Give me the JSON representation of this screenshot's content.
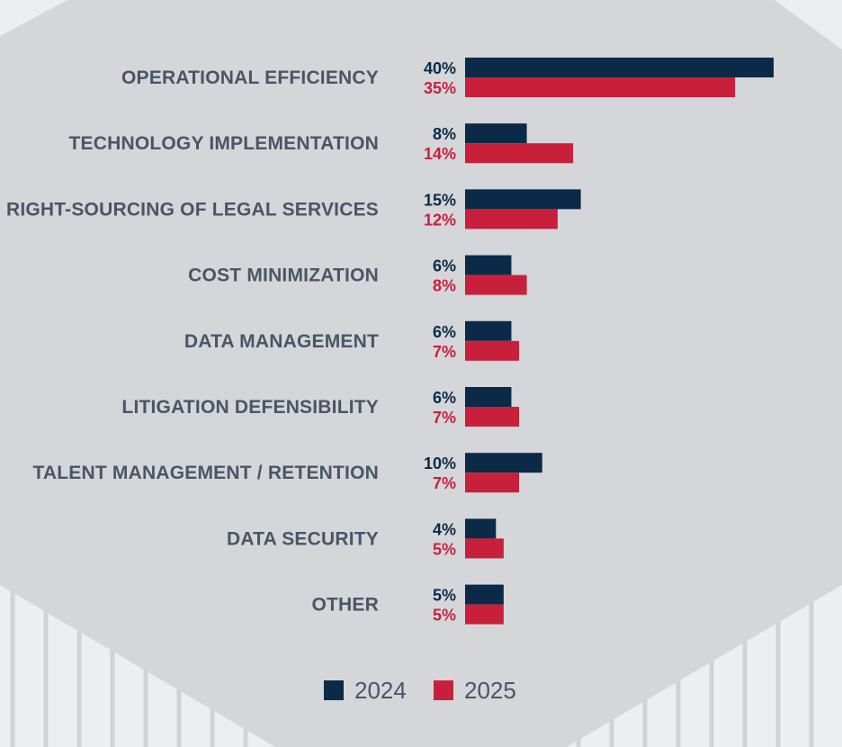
{
  "colors": {
    "series_2024": "#0b2a47",
    "series_2025": "#c8203b",
    "category_text": "#4a5566",
    "legend_text": "#4a5566",
    "hexagon_fill": "#d4d6da",
    "page_bg": "#eceef0"
  },
  "chart_data": {
    "type": "bar",
    "orientation": "horizontal",
    "categories": [
      "OPERATIONAL EFFICIENCY",
      "TECHNOLOGY IMPLEMENTATION",
      "RIGHT-SOURCING OF LEGAL SERVICES",
      "COST MINIMIZATION",
      "DATA MANAGEMENT",
      "LITIGATION DEFENSIBILITY",
      "TALENT MANAGEMENT / RETENTION",
      "DATA SECURITY",
      "OTHER"
    ],
    "series": [
      {
        "name": "2024",
        "values": [
          40,
          8,
          15,
          6,
          6,
          6,
          10,
          4,
          5
        ],
        "labels": [
          "40%",
          "8%",
          "15%",
          "6%",
          "6%",
          "6%",
          "10%",
          "4%",
          "5%"
        ]
      },
      {
        "name": "2025",
        "values": [
          35,
          14,
          12,
          8,
          7,
          7,
          7,
          5,
          5
        ],
        "labels": [
          "35%",
          "14%",
          "12%",
          "8%",
          "7%",
          "7%",
          "7%",
          "5%",
          "5%"
        ]
      }
    ],
    "xlim": [
      0,
      40
    ],
    "grid": false,
    "legend_position": "bottom"
  }
}
